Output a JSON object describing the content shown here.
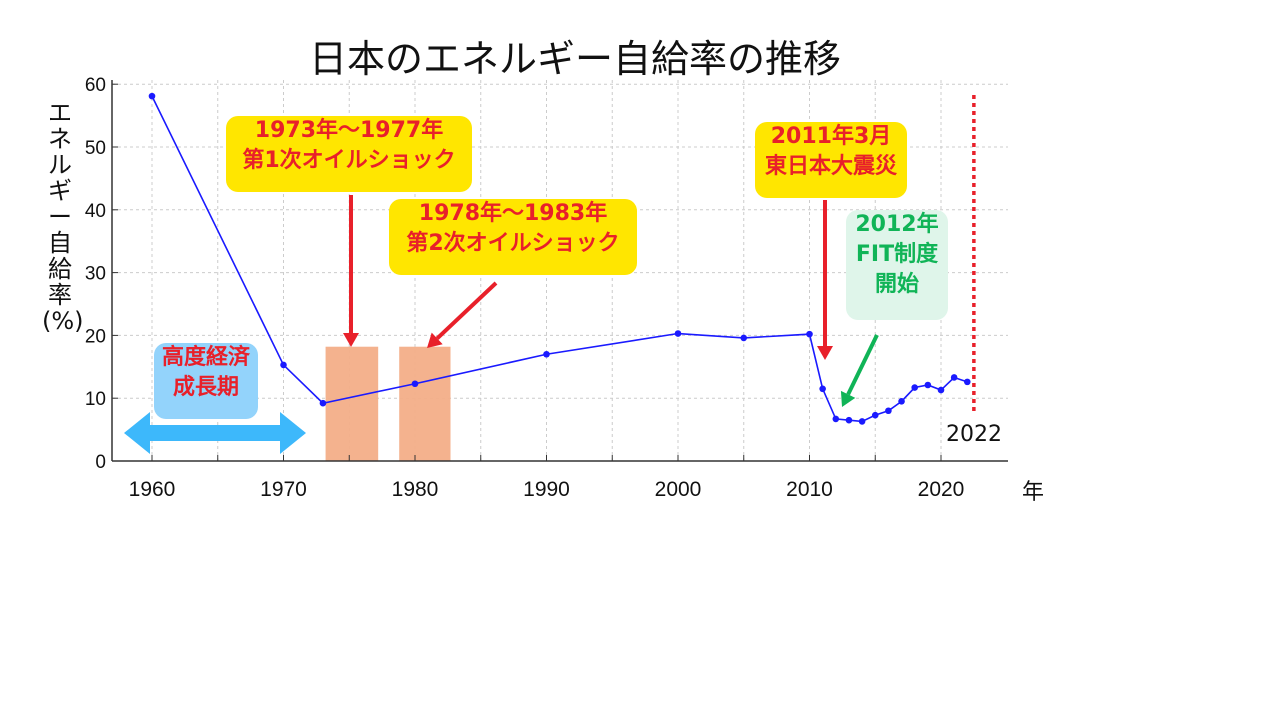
{
  "chart_data": {
    "type": "line",
    "title": "日本のエネルギー自給率の推移",
    "xlabel": "年",
    "ylabel": "エネルギー自給率(%)",
    "xlim": [
      1957,
      2025
    ],
    "ylim": [
      0,
      60
    ],
    "grid": true,
    "x_ticks": [
      1960,
      1970,
      1980,
      1990,
      2000,
      2010,
      2020
    ],
    "y_ticks": [
      0,
      10,
      20,
      30,
      40,
      50,
      60
    ],
    "series": [
      {
        "name": "エネルギー自給率",
        "color": "#1a1aff",
        "x": [
          1960,
          1970,
          1973,
          1980,
          1990,
          2000,
          2005,
          2010,
          2011,
          2012,
          2013,
          2014,
          2015,
          2016,
          2017,
          2018,
          2019,
          2020,
          2021,
          2022
        ],
        "y": [
          58.1,
          15.3,
          9.2,
          12.3,
          17.0,
          20.3,
          19.6,
          20.2,
          11.5,
          6.7,
          6.5,
          6.3,
          7.3,
          8.0,
          9.5,
          11.7,
          12.1,
          11.3,
          13.3,
          12.6
        ]
      }
    ],
    "shaded_bars": [
      {
        "from": 1973.2,
        "to": 1977.2,
        "height": 18.2,
        "color": "#f3ae88"
      },
      {
        "from": 1978.8,
        "to": 1982.7,
        "height": 18.2,
        "color": "#f3ae88"
      }
    ],
    "marker_line": {
      "x": 2022.5,
      "color": "#e8202a",
      "label": "2022"
    },
    "annotations": {
      "oil1": "1973年〜1977年\n第1次オイルショック",
      "oil1_l1": "1973年〜1977年",
      "oil1_l2": "第1次オイルショック",
      "oil2_l1": "1978年〜1983年",
      "oil2_l2": "第2次オイルショック",
      "quake_l1": "2011年3月",
      "quake_l2": "東日本大震災",
      "fit_l1": "2012年",
      "fit_l2": "FIT制度",
      "fit_l3": "開始",
      "growth_l1": "高度経済",
      "growth_l2": "成長期"
    }
  }
}
